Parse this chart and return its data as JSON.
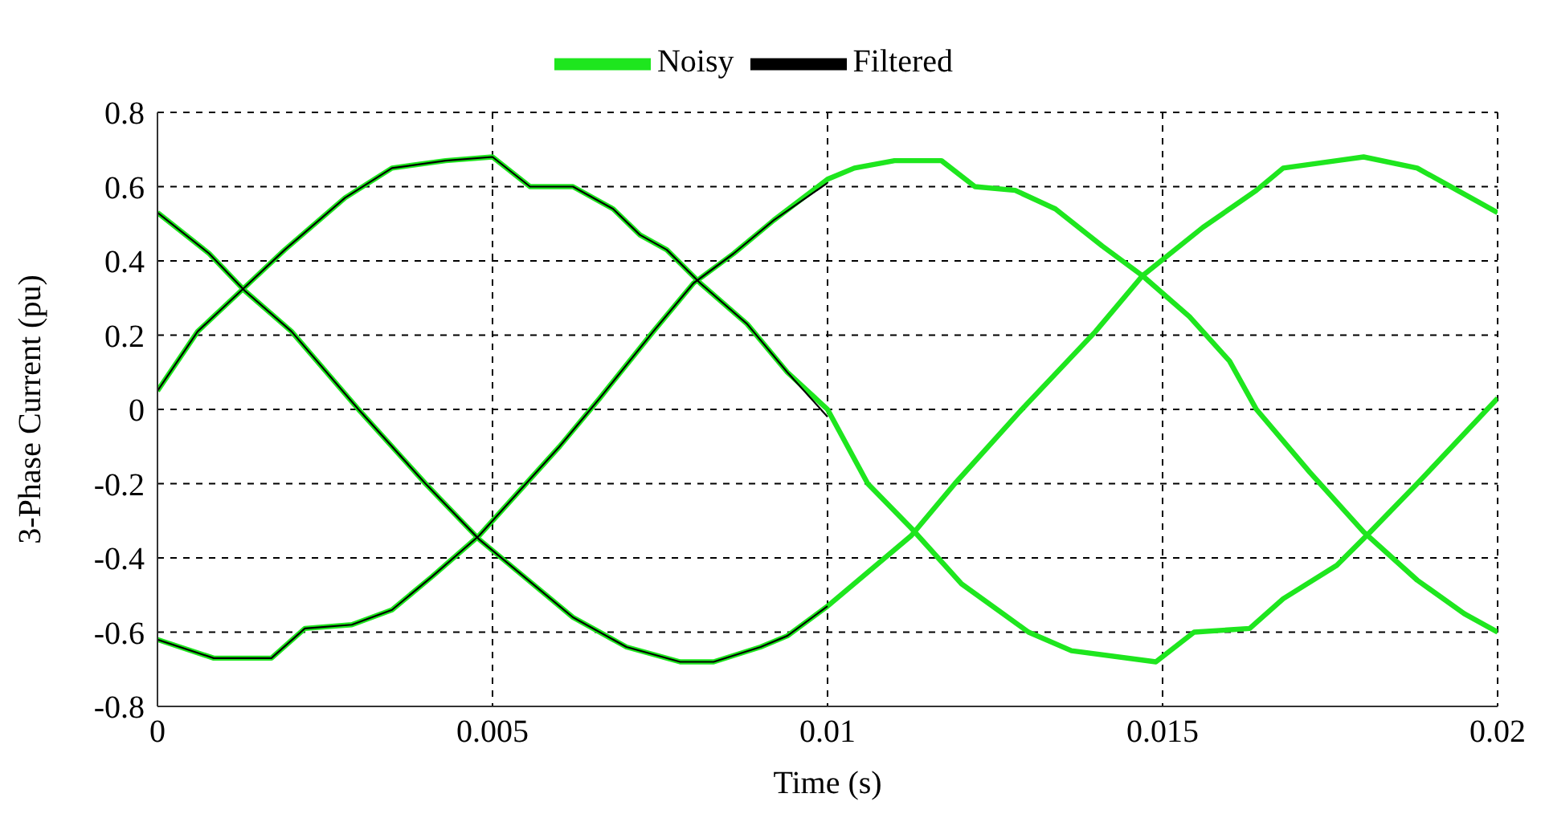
{
  "chart_data": {
    "type": "line",
    "xlabel": "Time (s)",
    "ylabel": "3-Phase Current (pu)",
    "xlim": [
      0,
      0.02
    ],
    "ylim": [
      -0.8,
      0.8
    ],
    "xticks": [
      0,
      0.005,
      0.01,
      0.015,
      0.02
    ],
    "yticks": [
      -0.8,
      -0.6,
      -0.4,
      -0.2,
      0,
      0.2,
      0.4,
      0.6,
      0.8
    ],
    "grid": true,
    "legend": "top",
    "line_style": "solid",
    "marker": "none",
    "series": [
      {
        "name": "Noisy",
        "color": "#1ee61e",
        "x": [
          0,
          0.0006,
          0.00125,
          0.0019,
          0.0028,
          0.0035,
          0.0043,
          0.005,
          0.00556,
          0.0062,
          0.0068,
          0.0072,
          0.0076,
          0.0081,
          0.0088,
          0.0094,
          0.01,
          0.0106,
          0.01125,
          0.012,
          0.013,
          0.01364,
          0.0149,
          0.01547,
          0.0163,
          0.0168,
          0.0176,
          0.0181,
          0.0188,
          0.02
        ],
        "values": [
          0.05,
          0.21,
          0.32,
          0.43,
          0.57,
          0.65,
          0.67,
          0.68,
          0.6,
          0.6,
          0.54,
          0.47,
          0.43,
          0.34,
          0.23,
          0.1,
          0,
          -0.2,
          -0.32,
          -0.47,
          -0.6,
          -0.65,
          -0.68,
          -0.6,
          -0.59,
          -0.51,
          -0.42,
          -0.33,
          -0.2,
          0.03
        ]
      },
      {
        "color": "#1ee61e",
        "x": [
          0,
          0.00077,
          0.0013,
          0.002,
          0.003,
          0.004,
          0.0048,
          0.0056,
          0.0062,
          0.007,
          0.0078,
          0.0083,
          0.009,
          0.0094,
          0.01,
          0.01125,
          0.0119,
          0.0129,
          0.014,
          0.0147,
          0.0156,
          0.0164,
          0.0168,
          0.0176,
          0.018,
          0.0188,
          0.0194,
          0.02
        ],
        "values": [
          0.53,
          0.42,
          0.32,
          0.21,
          0,
          -0.2,
          -0.35,
          -0.47,
          -0.56,
          -0.64,
          -0.68,
          -0.68,
          -0.64,
          -0.61,
          -0.53,
          -0.34,
          -0.2,
          0,
          0.21,
          0.36,
          0.49,
          0.59,
          0.65,
          0.67,
          0.68,
          0.65,
          0.59,
          0.53
        ]
      },
      {
        "color": "#1ee61e",
        "x": [
          0,
          0.00084,
          0.0017,
          0.0022,
          0.0029,
          0.0035,
          0.0041,
          0.0048,
          0.0054,
          0.006,
          0.0066,
          0.0074,
          0.008,
          0.0086,
          0.0092,
          0.01,
          0.0104,
          0.011,
          0.0117,
          0.0122,
          0.0128,
          0.0134,
          0.0141,
          0.0147,
          0.0154,
          0.016,
          0.0164,
          0.0172,
          0.018,
          0.0188,
          0.0195,
          0.02
        ],
        "values": [
          -0.62,
          -0.67,
          -0.67,
          -0.59,
          -0.58,
          -0.54,
          -0.45,
          -0.34,
          -0.22,
          -0.1,
          0.03,
          0.21,
          0.34,
          0.42,
          0.51,
          0.62,
          0.65,
          0.67,
          0.67,
          0.6,
          0.59,
          0.54,
          0.44,
          0.36,
          0.25,
          0.13,
          0,
          -0.17,
          -0.33,
          -0.46,
          -0.55,
          -0.6
        ]
      },
      {
        "name": "Filtered",
        "color": "#000000",
        "x": [
          0,
          0.0006,
          0.00125,
          0.0019,
          0.0028,
          0.0035,
          0.0043,
          0.005,
          0.00556,
          0.0062,
          0.0068,
          0.0072,
          0.0076,
          0.0081,
          0.0088,
          0.0094,
          0.01
        ],
        "values": [
          0.05,
          0.21,
          0.32,
          0.43,
          0.57,
          0.65,
          0.67,
          0.68,
          0.6,
          0.6,
          0.54,
          0.47,
          0.43,
          0.34,
          0.23,
          0.1,
          -0.02
        ]
      },
      {
        "color": "#000000",
        "x": [
          0,
          0.00077,
          0.0013,
          0.002,
          0.003,
          0.004,
          0.0048,
          0.0056,
          0.0062,
          0.007,
          0.0078,
          0.0083,
          0.009,
          0.0094,
          0.01
        ],
        "values": [
          0.53,
          0.42,
          0.32,
          0.21,
          0,
          -0.2,
          -0.35,
          -0.47,
          -0.56,
          -0.64,
          -0.68,
          -0.68,
          -0.64,
          -0.61,
          -0.53
        ]
      },
      {
        "color": "#000000",
        "x": [
          0,
          0.00084,
          0.0017,
          0.0022,
          0.0029,
          0.0035,
          0.0041,
          0.0048,
          0.0054,
          0.006,
          0.0066,
          0.0074,
          0.008,
          0.0086,
          0.0092,
          0.01
        ],
        "values": [
          -0.62,
          -0.67,
          -0.67,
          -0.59,
          -0.58,
          -0.54,
          -0.45,
          -0.34,
          -0.22,
          -0.1,
          0.03,
          0.21,
          0.34,
          0.42,
          0.51,
          0.61
        ]
      }
    ]
  }
}
